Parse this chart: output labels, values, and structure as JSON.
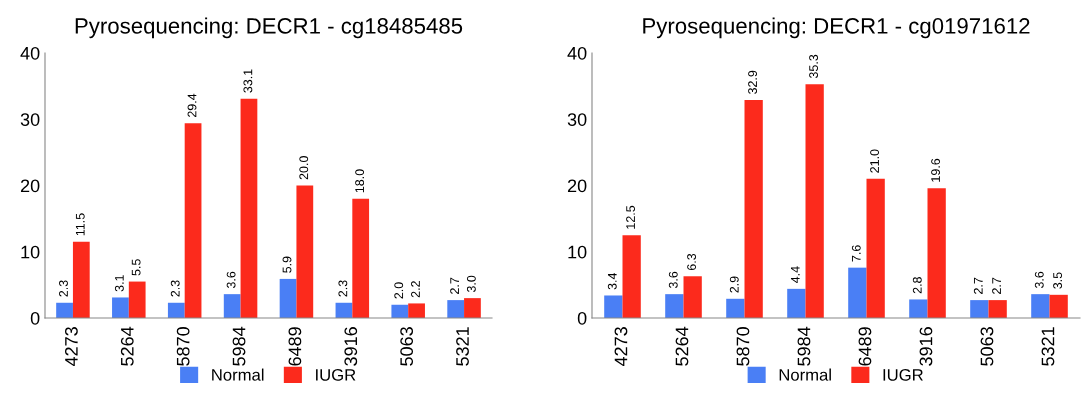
{
  "chart_data": [
    {
      "type": "bar",
      "title": "Pyrosequencing: DECR1 - cg18485485",
      "categories": [
        "4273",
        "5264",
        "5870",
        "5984",
        "6489",
        "3916",
        "5063",
        "5321"
      ],
      "ylim": [
        0,
        40
      ],
      "yticks": [
        0,
        10,
        20,
        30,
        40
      ],
      "legend": "bottom",
      "grid": false,
      "series": [
        {
          "name": "Normal",
          "color": "#4a7ff5",
          "values": [
            2.3,
            3.1,
            2.3,
            3.6,
            5.9,
            2.3,
            2.0,
            2.7
          ],
          "value_labels": [
            "2.3",
            "3.1",
            "2.3",
            "3.6",
            "5.9",
            "2.3",
            "2.0",
            "2.7"
          ]
        },
        {
          "name": "IUGR",
          "color": "#fc2a1c",
          "values": [
            11.5,
            5.5,
            29.4,
            33.1,
            20.0,
            18.0,
            2.2,
            3.0
          ],
          "value_labels": [
            "11.5",
            "5.5",
            "29.4",
            "33.1",
            "20.0",
            "18.0",
            "2.2",
            "3.0"
          ]
        }
      ]
    },
    {
      "type": "bar",
      "title": "Pyrosequencing: DECR1 - cg01971612",
      "categories": [
        "4273",
        "5264",
        "5870",
        "5984",
        "6489",
        "3916",
        "5063",
        "5321"
      ],
      "ylim": [
        0,
        40
      ],
      "yticks": [
        0,
        10,
        20,
        30,
        40
      ],
      "legend": "bottom",
      "grid": false,
      "series": [
        {
          "name": "Normal",
          "color": "#4a7ff5",
          "values": [
            3.4,
            3.6,
            2.9,
            4.4,
            7.6,
            2.8,
            2.7,
            3.6
          ],
          "value_labels": [
            "3.4",
            "3.6",
            "2.9",
            "4.4",
            "7.6",
            "2.8",
            "2.7",
            "3.6"
          ]
        },
        {
          "name": "IUGR",
          "color": "#fc2a1c",
          "values": [
            12.5,
            6.3,
            32.9,
            35.3,
            21.0,
            19.6,
            2.7,
            3.5
          ],
          "value_labels": [
            "12.5",
            "6.3",
            "32.9",
            "35.3",
            "21.0",
            "19.6",
            "2.7",
            "3.5"
          ]
        }
      ]
    }
  ]
}
